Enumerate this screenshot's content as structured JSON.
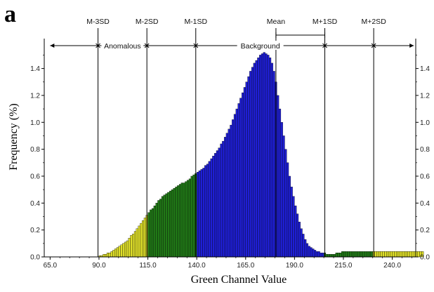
{
  "panel_letter": "a",
  "chart_data": {
    "type": "bar",
    "xlabel": "Green Channel Value",
    "ylabel": "Frequency (%)",
    "xlim": [
      62,
      252
    ],
    "ylim": [
      0,
      1.57
    ],
    "x_ticks": [
      "65.0",
      "90.0",
      "115.0",
      "140.0",
      "165.0",
      "190.0",
      "215.0",
      "240.0"
    ],
    "x_tick_values": [
      65,
      90,
      115,
      140,
      165,
      190,
      215,
      240
    ],
    "y_ticks": [
      "0.0",
      "0.2",
      "0.4",
      "0.6",
      "0.8",
      "1.0",
      "1.2",
      "1.4"
    ],
    "y_tick_values": [
      0,
      0.2,
      0.4,
      0.6,
      0.8,
      1.0,
      1.2,
      1.4
    ],
    "right_axis_ticks": true,
    "grid": false,
    "sd_lines": [
      {
        "label": "M-3SD",
        "x": 89.5
      },
      {
        "label": "M-2SD",
        "x": 114.5
      },
      {
        "label": "M-1SD",
        "x": 139.5
      },
      {
        "label": "Mean",
        "x": 180.5
      },
      {
        "label": "M+1SD",
        "x": 205.5
      },
      {
        "label": "M+2SD",
        "x": 230.5
      }
    ],
    "region_labels": [
      {
        "label": "Anomalous",
        "from": 65,
        "to": 139.5
      },
      {
        "label": "Background",
        "from": 139.5,
        "to": 251
      }
    ],
    "colors": {
      "outer": "#e0e02a",
      "middle": "#217a17",
      "center": "#1f1fd6",
      "bar_edge": "#000000",
      "line": "#000000"
    },
    "bins_x_start": 65,
    "values": [
      0.0,
      0.0,
      0.0,
      0.0,
      0.0,
      0.0,
      0.0,
      0.0,
      0.0,
      0.0,
      0.0,
      0.0,
      0.0,
      0.0,
      0.0,
      0.0,
      0.0,
      0.0,
      0.0,
      0.0,
      0.0,
      0.0,
      0.0,
      0.0,
      0.0,
      0.01,
      0.01,
      0.02,
      0.02,
      0.03,
      0.03,
      0.04,
      0.05,
      0.06,
      0.07,
      0.08,
      0.09,
      0.1,
      0.11,
      0.12,
      0.14,
      0.16,
      0.17,
      0.19,
      0.21,
      0.23,
      0.25,
      0.27,
      0.29,
      0.31,
      0.33,
      0.35,
      0.36,
      0.38,
      0.4,
      0.42,
      0.43,
      0.45,
      0.46,
      0.47,
      0.48,
      0.49,
      0.5,
      0.51,
      0.52,
      0.53,
      0.54,
      0.55,
      0.55,
      0.56,
      0.57,
      0.58,
      0.6,
      0.61,
      0.62,
      0.63,
      0.64,
      0.65,
      0.66,
      0.68,
      0.69,
      0.71,
      0.73,
      0.75,
      0.77,
      0.79,
      0.81,
      0.84,
      0.86,
      0.89,
      0.92,
      0.95,
      0.98,
      1.02,
      1.06,
      1.1,
      1.14,
      1.18,
      1.22,
      1.26,
      1.3,
      1.34,
      1.38,
      1.41,
      1.44,
      1.46,
      1.48,
      1.5,
      1.51,
      1.52,
      1.51,
      1.5,
      1.48,
      1.44,
      1.38,
      1.3,
      1.2,
      1.1,
      1.0,
      0.9,
      0.8,
      0.7,
      0.6,
      0.52,
      0.45,
      0.38,
      0.32,
      0.26,
      0.21,
      0.17,
      0.13,
      0.1,
      0.08,
      0.07,
      0.06,
      0.05,
      0.04,
      0.04,
      0.03,
      0.03,
      0.03,
      0.02,
      0.02,
      0.02,
      0.02,
      0.02,
      0.03,
      0.03,
      0.03,
      0.04,
      0.04,
      0.04,
      0.04,
      0.04,
      0.04,
      0.04,
      0.04,
      0.04,
      0.04,
      0.04,
      0.04,
      0.04,
      0.04,
      0.04,
      0.04,
      0.04,
      0.04,
      0.04,
      0.04,
      0.04,
      0.04,
      0.04,
      0.04,
      0.04,
      0.04,
      0.04,
      0.04,
      0.04,
      0.04,
      0.04,
      0.04,
      0.04,
      0.04,
      0.04,
      0.04,
      0.04,
      0.04,
      0.04,
      0.04,
      0.04,
      0.04
    ]
  }
}
